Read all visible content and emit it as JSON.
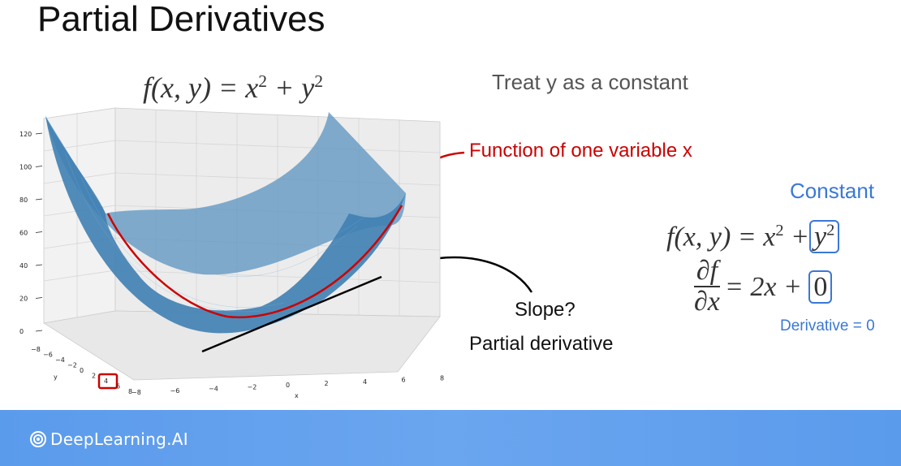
{
  "slide": {
    "title": "Partial Derivatives",
    "formula_top": {
      "lhs": "f(x, y) = x",
      "exp1": "2",
      "mid": " + y",
      "exp2": "2"
    },
    "treat_text": "Treat y as a constant",
    "function_label": "Function of one variable x",
    "constant_label": "Constant",
    "formula_right": {
      "lhs": "f(x, y) = x",
      "exp1": "2",
      "plus": " +",
      "boxed_base": "y",
      "boxed_exp": "2"
    },
    "partial": {
      "num": "∂f",
      "den": "∂x",
      "rhs": "= 2x +",
      "boxed_zero": "0"
    },
    "derivative_label": "Derivative = 0",
    "slope_label": "Slope?",
    "partial_label": "Partial derivative",
    "logo_text": "DeepLearning.AI"
  },
  "plot": {
    "z_ticks": [
      "0",
      "20",
      "40",
      "60",
      "80",
      "100",
      "120"
    ],
    "x_ticks": [
      "−8",
      "−6",
      "−4",
      "−2",
      "0",
      "2",
      "4",
      "6",
      "8"
    ],
    "x_label": "x",
    "y_ticks": [
      "−8",
      "−6",
      "−4",
      "−2",
      "0",
      "2",
      "4",
      "6",
      "8"
    ],
    "y_label": "y",
    "highlighted_y_tick": "4",
    "colors": {
      "surface": "#4a87b8",
      "curve": "#cc0000",
      "tangent": "#000000",
      "highlight": "#cc0000"
    }
  }
}
